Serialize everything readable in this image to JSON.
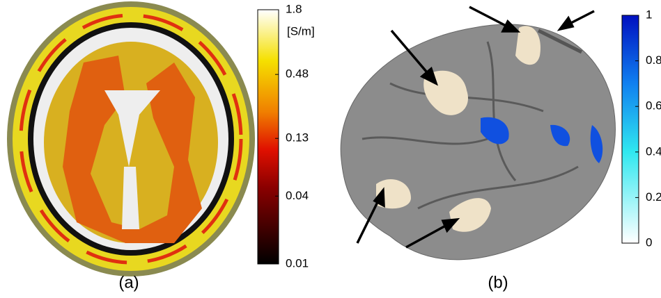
{
  "panels": [
    {
      "label": "(a)",
      "colorbar": {
        "unit": "[S/m]",
        "log": true,
        "clim": [
          0.01,
          1.8
        ],
        "ticks": [
          1.8,
          0.48,
          0.13,
          0.04,
          0.01
        ]
      }
    },
    {
      "label": "(b)",
      "colorbar": {
        "log": false,
        "clim": [
          0,
          1
        ],
        "ticks": [
          1,
          0.8,
          0.6,
          0.4,
          0.2,
          0
        ]
      }
    }
  ]
}
